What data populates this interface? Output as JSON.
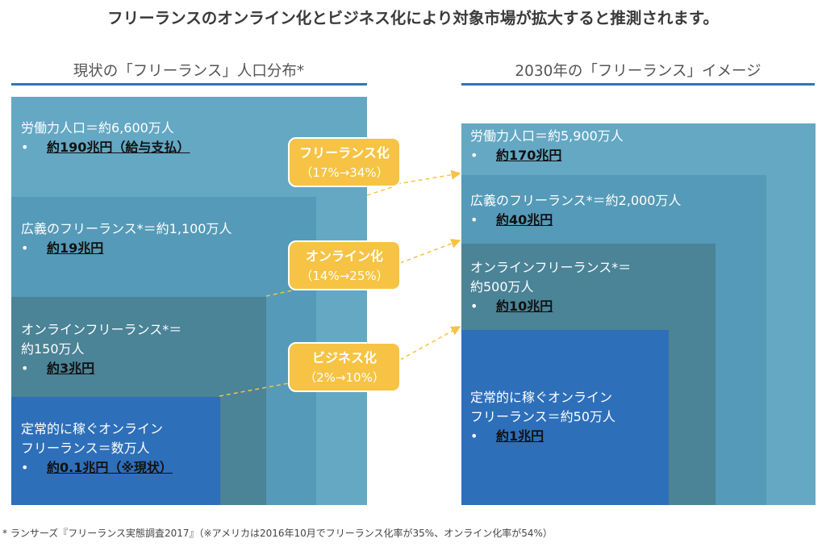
{
  "title": "フリーランスのオンライン化とビジネス化により対象市場が拡大すると推測されます。",
  "left_panel": {
    "heading": "現状の「フリーランス」人口分布*",
    "layers": [
      {
        "line1": "労働力人口＝約6,600万人",
        "line2": "",
        "value": "約190兆円（給与支払）"
      },
      {
        "line1": "広義のフリーランス*＝約1,100万人",
        "line2": "",
        "value": "約19兆円"
      },
      {
        "line1": "オンラインフリーランス*＝",
        "line2": "約150万人",
        "value": "約3兆円"
      },
      {
        "line1": "定常的に稼ぐオンライン",
        "line2": "フリーランス＝数万人",
        "value": "約0.1兆円（※現状）"
      }
    ]
  },
  "right_panel": {
    "heading": "2030年の「フリーランス」イメージ",
    "layers": [
      {
        "line1": "労働力人口＝約5,900万人",
        "line2": "",
        "value": "約170兆円"
      },
      {
        "line1": "広義のフリーランス*＝約2,000万人",
        "line2": "",
        "value": "約40兆円"
      },
      {
        "line1": "オンラインフリーランス*＝",
        "line2": "約500万人",
        "value": "約10兆円"
      },
      {
        "line1": "定常的に稼ぐオンライン",
        "line2": "フリーランス＝約50万人",
        "value": "約1兆円"
      }
    ]
  },
  "bullet_glyph": "•",
  "callouts": [
    {
      "label": "フリーランス化",
      "change": "（17%→34%）"
    },
    {
      "label": "オンライン化",
      "change": "（14%→25%）"
    },
    {
      "label": "ビジネス化",
      "change": "（2%→10%）"
    }
  ],
  "footnote": "* ランサーズ『フリーランス実態調査2017』（※アメリカは2016年10月でフリーランス化率が35%、オンライン化率が54%）",
  "colors": {
    "layer1": "#64a8c4",
    "layer2": "#559ab8",
    "layer3": "#4b8397",
    "layer4": "#2e6fba",
    "callout": "#f6c344",
    "accent_line": "#2e75b6"
  }
}
